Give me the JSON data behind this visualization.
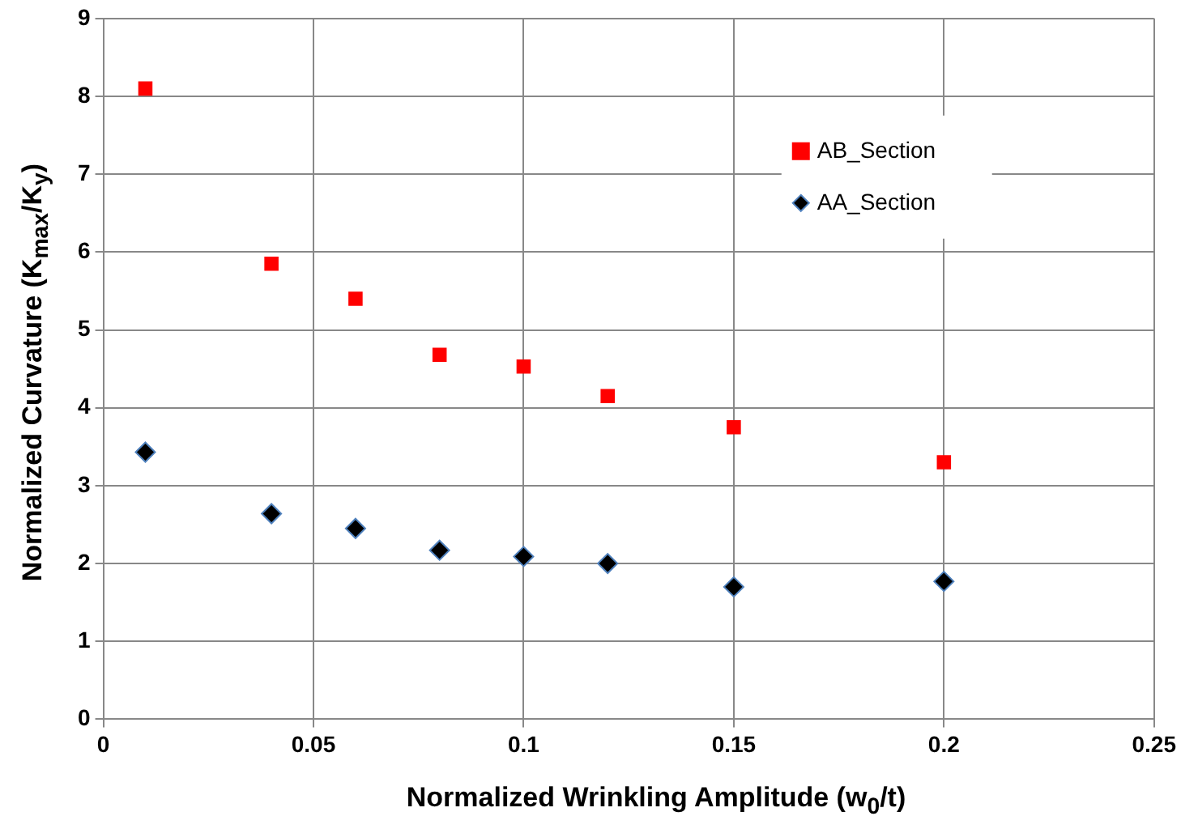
{
  "chart_data": {
    "type": "scatter",
    "xlabel": "Normalized Wrinkling Amplitude (w$_{0}$/t)",
    "ylabel": "Normalized Curvature (K$_{max}$/K$_{y}$)",
    "x": [
      0.01,
      0.04,
      0.06,
      0.08,
      0.1,
      0.12,
      0.15,
      0.2
    ],
    "series": [
      {
        "name": "AB_Section",
        "color": "#ff0000",
        "marker": "square",
        "values": [
          8.1,
          5.85,
          5.4,
          4.68,
          4.53,
          4.15,
          3.75,
          3.3
        ]
      },
      {
        "name": "AA_Section",
        "color": "#000000",
        "marker": "diamond",
        "values": [
          3.43,
          2.64,
          2.45,
          2.17,
          2.09,
          2.0,
          1.7,
          1.77
        ]
      }
    ],
    "xlim": [
      0,
      0.25
    ],
    "xticks": [
      0,
      0.05,
      0.1,
      0.15,
      0.2,
      0.25
    ],
    "ylim": [
      0,
      9
    ],
    "yticks": [
      0,
      1,
      2,
      3,
      4,
      5,
      6,
      7,
      8,
      9
    ],
    "grid": true,
    "legend": "top right"
  }
}
